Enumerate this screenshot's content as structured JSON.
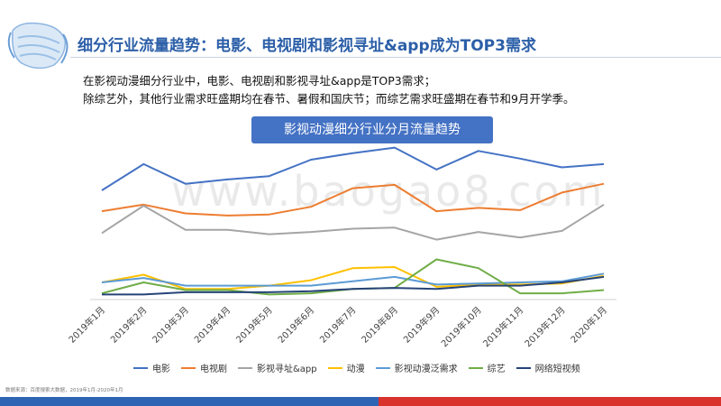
{
  "header": {
    "title": "细分行业流量趋势：电影、电视剧和影视寻址&app成为TOP3需求"
  },
  "description": {
    "line1": "在影视动漫细分行业中，电影、电视剧和影视寻址&app是TOP3需求；",
    "line2": "除综艺外，其他行业需求旺盛期均在春节、暑假和国庆节；而综艺需求旺盛期在春节和9月开学季。"
  },
  "watermark": "www.baogao8.com",
  "source": "数据来源：百度搜索大数据，2019年1月-2020年1月",
  "colors": {
    "title": "#2c5fa8",
    "chart_title_bg": "#4472c4",
    "footer_blue": "#2e64b4",
    "footer_red": "#d9312b"
  },
  "icons": [
    "face-mask-icon"
  ],
  "chart_data": {
    "type": "line",
    "title": "影视动漫细分行业分月流量趋势",
    "categories": [
      "2019年1月",
      "2019年2月",
      "2019年3月",
      "2019年4月",
      "2019年5月",
      "2019年6月",
      "2019年7月",
      "2019年8月",
      "2019年9月",
      "2019年10月",
      "2019年11月",
      "2019年12月",
      "2020年1月"
    ],
    "ylim": [
      0,
      140
    ],
    "grid": false,
    "legend": "bottom",
    "series": [
      {
        "name": "电影",
        "color": "#4472c4",
        "values": [
          98,
          122,
          104,
          108,
          111,
          126,
          132,
          137,
          117,
          134,
          127,
          119,
          122
        ]
      },
      {
        "name": "电视剧",
        "color": "#ed7d31",
        "values": [
          79,
          85,
          77,
          75,
          76,
          83,
          100,
          103,
          79,
          82,
          80,
          96,
          104
        ]
      },
      {
        "name": "影视寻址&app",
        "color": "#a5a5a5",
        "values": [
          59,
          84,
          62,
          62,
          58,
          60,
          63,
          64,
          53,
          60,
          55,
          61,
          85
        ]
      },
      {
        "name": "动漫",
        "color": "#ffc000",
        "values": [
          14,
          21,
          8,
          8,
          11,
          16,
          27,
          28,
          10,
          12,
          12,
          13,
          20
        ]
      },
      {
        "name": "影视动漫泛需求",
        "color": "#5b9bd5",
        "values": [
          14,
          18,
          11,
          11,
          11,
          11,
          15,
          19,
          12,
          13,
          14,
          15,
          22
        ]
      },
      {
        "name": "综艺",
        "color": "#70ad47",
        "values": [
          4,
          14,
          7,
          7,
          3,
          4,
          8,
          9,
          35,
          27,
          4,
          4,
          7
        ]
      },
      {
        "name": "网络短视频",
        "color": "#264478",
        "values": [
          3,
          3,
          5,
          5,
          5,
          6,
          8,
          9,
          8,
          11,
          11,
          14,
          19
        ]
      }
    ]
  }
}
